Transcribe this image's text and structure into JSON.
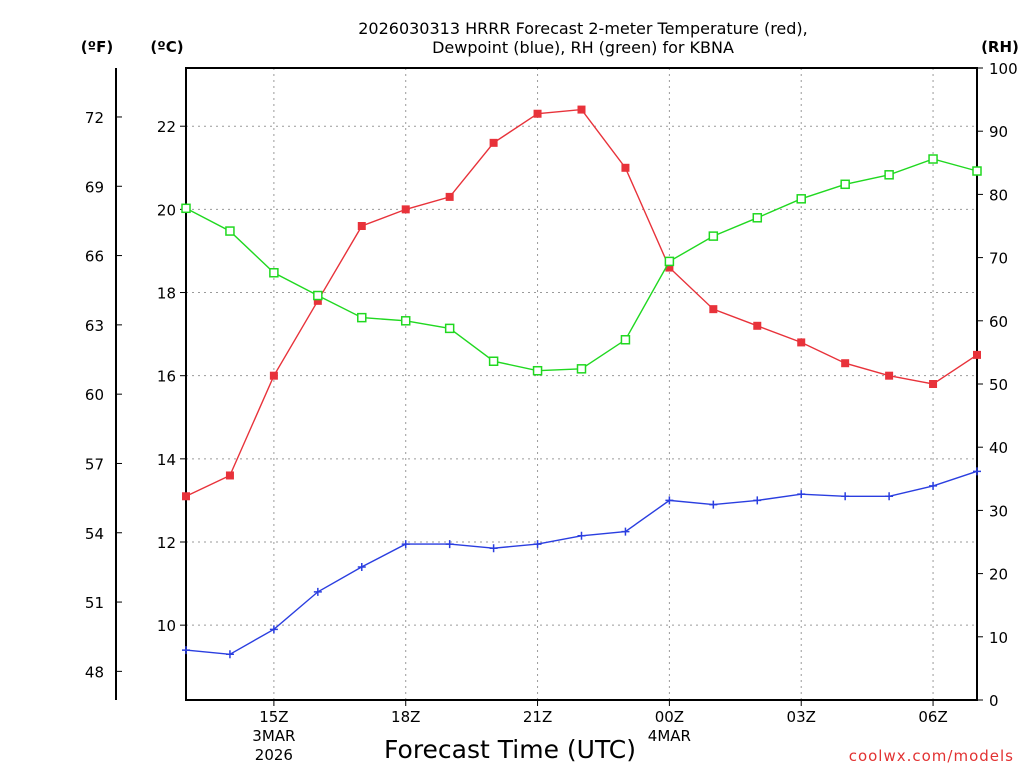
{
  "chart_data": {
    "type": "line",
    "title_line1": "2026030313 HRRR Forecast 2-meter Temperature (red),",
    "title_line2": "Dewpoint (blue), RH (green) for KBNA",
    "xlabel": "Forecast Time (UTC)",
    "watermark": "coolwx.com/models",
    "units": {
      "fahrenheit": "(ºF)",
      "celsius": "(ºC)",
      "rh": "(RH)"
    },
    "x_hours": [
      13,
      14,
      15,
      16,
      17,
      18,
      19,
      20,
      21,
      22,
      23,
      24,
      25,
      26,
      27,
      28,
      29,
      30,
      31
    ],
    "xlim": [
      13,
      31
    ],
    "x_ticks": [
      {
        "hour": 15,
        "label": "15Z",
        "sub1": "3MAR",
        "sub2": "2026"
      },
      {
        "hour": 18,
        "label": "18Z",
        "sub1": "",
        "sub2": ""
      },
      {
        "hour": 21,
        "label": "21Z",
        "sub1": "",
        "sub2": ""
      },
      {
        "hour": 24,
        "label": "00Z",
        "sub1": "4MAR",
        "sub2": ""
      },
      {
        "hour": 27,
        "label": "03Z",
        "sub1": "",
        "sub2": ""
      },
      {
        "hour": 30,
        "label": "06Z",
        "sub1": "",
        "sub2": ""
      }
    ],
    "celsius_axis": {
      "range": [
        8.2,
        23.4
      ],
      "ticks": [
        "10",
        "12",
        "14",
        "16",
        "18",
        "20",
        "22"
      ]
    },
    "fahrenheit_ticks": [
      "48",
      "51",
      "54",
      "57",
      "60",
      "63",
      "66",
      "69",
      "72"
    ],
    "rh_axis": {
      "range": [
        0,
        100
      ],
      "ticks": [
        "0",
        "10",
        "20",
        "30",
        "40",
        "50",
        "60",
        "70",
        "80",
        "90",
        "100"
      ]
    },
    "series": [
      {
        "name": "Temperature",
        "axis": "celsius",
        "color": "#e8323a",
        "marker": "filled-square",
        "values": [
          13.1,
          13.6,
          16.0,
          17.8,
          19.6,
          20.0,
          20.3,
          21.6,
          22.3,
          22.4,
          21.0,
          18.6,
          17.6,
          17.2,
          16.8,
          16.3,
          16.0,
          15.8,
          16.5
        ]
      },
      {
        "name": "Dewpoint",
        "axis": "celsius",
        "color": "#2a3ee0",
        "marker": "plus",
        "values": [
          9.4,
          9.3,
          9.9,
          10.8,
          11.4,
          11.95,
          11.95,
          11.85,
          11.95,
          12.15,
          12.25,
          13.0,
          12.9,
          13.0,
          13.15,
          13.1,
          13.1,
          13.35,
          13.7
        ]
      },
      {
        "name": "RH",
        "axis": "rh",
        "color": "#20d820",
        "marker": "open-square",
        "values": [
          77.8,
          74.2,
          67.6,
          64.0,
          60.5,
          60.0,
          58.8,
          53.6,
          52.1,
          52.4,
          57.0,
          69.4,
          73.4,
          76.3,
          79.3,
          81.6,
          83.1,
          85.6,
          83.7
        ]
      }
    ]
  }
}
